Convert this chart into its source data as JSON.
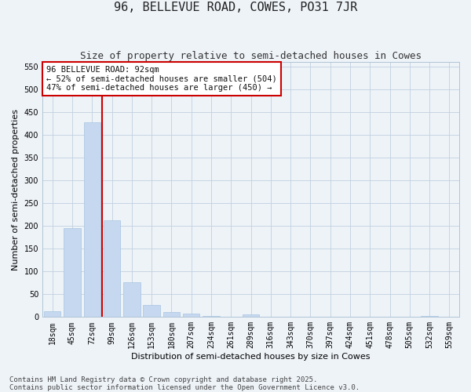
{
  "title": "96, BELLEVUE ROAD, COWES, PO31 7JR",
  "subtitle": "Size of property relative to semi-detached houses in Cowes",
  "xlabel": "Distribution of semi-detached houses by size in Cowes",
  "ylabel": "Number of semi-detached properties",
  "categories": [
    "18sqm",
    "45sqm",
    "72sqm",
    "99sqm",
    "126sqm",
    "153sqm",
    "180sqm",
    "207sqm",
    "234sqm",
    "261sqm",
    "289sqm",
    "316sqm",
    "343sqm",
    "370sqm",
    "397sqm",
    "424sqm",
    "451sqm",
    "478sqm",
    "505sqm",
    "532sqm",
    "559sqm"
  ],
  "values": [
    13,
    195,
    428,
    212,
    77,
    27,
    11,
    8,
    3,
    0,
    5,
    0,
    0,
    0,
    0,
    0,
    0,
    0,
    0,
    3,
    0
  ],
  "bar_color": "#c5d8f0",
  "bar_edge_color": "#a8c4e0",
  "grid_color": "#c0d0e0",
  "background_color": "#eef3f8",
  "annotation_box_text": "96 BELLEVUE ROAD: 92sqm\n← 52% of semi-detached houses are smaller (504)\n47% of semi-detached houses are larger (450) →",
  "annotation_box_color": "#ffffff",
  "annotation_box_edge_color": "#cc0000",
  "vline_color": "#cc0000",
  "ylim": [
    0,
    560
  ],
  "yticks": [
    0,
    50,
    100,
    150,
    200,
    250,
    300,
    350,
    400,
    450,
    500,
    550
  ],
  "footer_line1": "Contains HM Land Registry data © Crown copyright and database right 2025.",
  "footer_line2": "Contains public sector information licensed under the Open Government Licence v3.0.",
  "title_fontsize": 11,
  "subtitle_fontsize": 9,
  "axis_label_fontsize": 8,
  "tick_fontsize": 7,
  "annotation_fontsize": 7.5,
  "footer_fontsize": 6.5
}
